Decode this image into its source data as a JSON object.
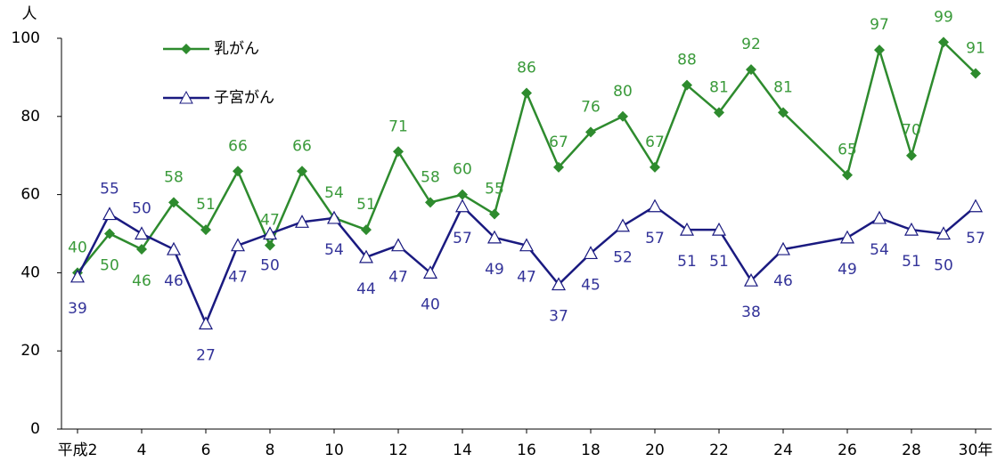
{
  "chart_data": {
    "type": "line",
    "y_axis_label": "人",
    "x": [
      2,
      3,
      4,
      5,
      6,
      7,
      8,
      9,
      10,
      11,
      12,
      13,
      14,
      15,
      16,
      17,
      18,
      19,
      20,
      21,
      22,
      23,
      24,
      26,
      27,
      28,
      29,
      30
    ],
    "series": [
      {
        "name": "乳がん",
        "color": "#2e8b2e",
        "marker": "diamond",
        "values": [
          40,
          50,
          46,
          58,
          51,
          66,
          47,
          66,
          54,
          51,
          71,
          58,
          60,
          55,
          86,
          67,
          76,
          80,
          67,
          88,
          81,
          92,
          81,
          65,
          97,
          70,
          99,
          91
        ]
      },
      {
        "name": "子宮がん",
        "color": "#1a1a80",
        "marker": "triangle",
        "values": [
          39,
          55,
          50,
          46,
          27,
          47,
          50,
          53,
          54,
          44,
          47,
          40,
          57,
          49,
          47,
          37,
          45,
          52,
          57,
          51,
          51,
          38,
          46,
          49,
          54,
          51,
          50,
          57
        ],
        "value_labels": [
          39,
          55,
          50,
          46,
          27,
          47,
          50,
          null,
          54,
          44,
          47,
          40,
          57,
          49,
          47,
          37,
          45,
          52,
          57,
          51,
          51,
          38,
          46,
          49,
          54,
          51,
          50,
          57
        ]
      }
    ],
    "xlim": [
      1.5,
      30.5
    ],
    "xticks": [
      {
        "value": 2,
        "label": "平成2"
      },
      4,
      6,
      8,
      10,
      12,
      14,
      16,
      18,
      20,
      22,
      24,
      26,
      28,
      {
        "value": 30,
        "label": "30年"
      }
    ],
    "ylim": [
      0,
      100
    ],
    "yticks": [
      0,
      20,
      40,
      60,
      80,
      100
    ],
    "grid": false
  }
}
